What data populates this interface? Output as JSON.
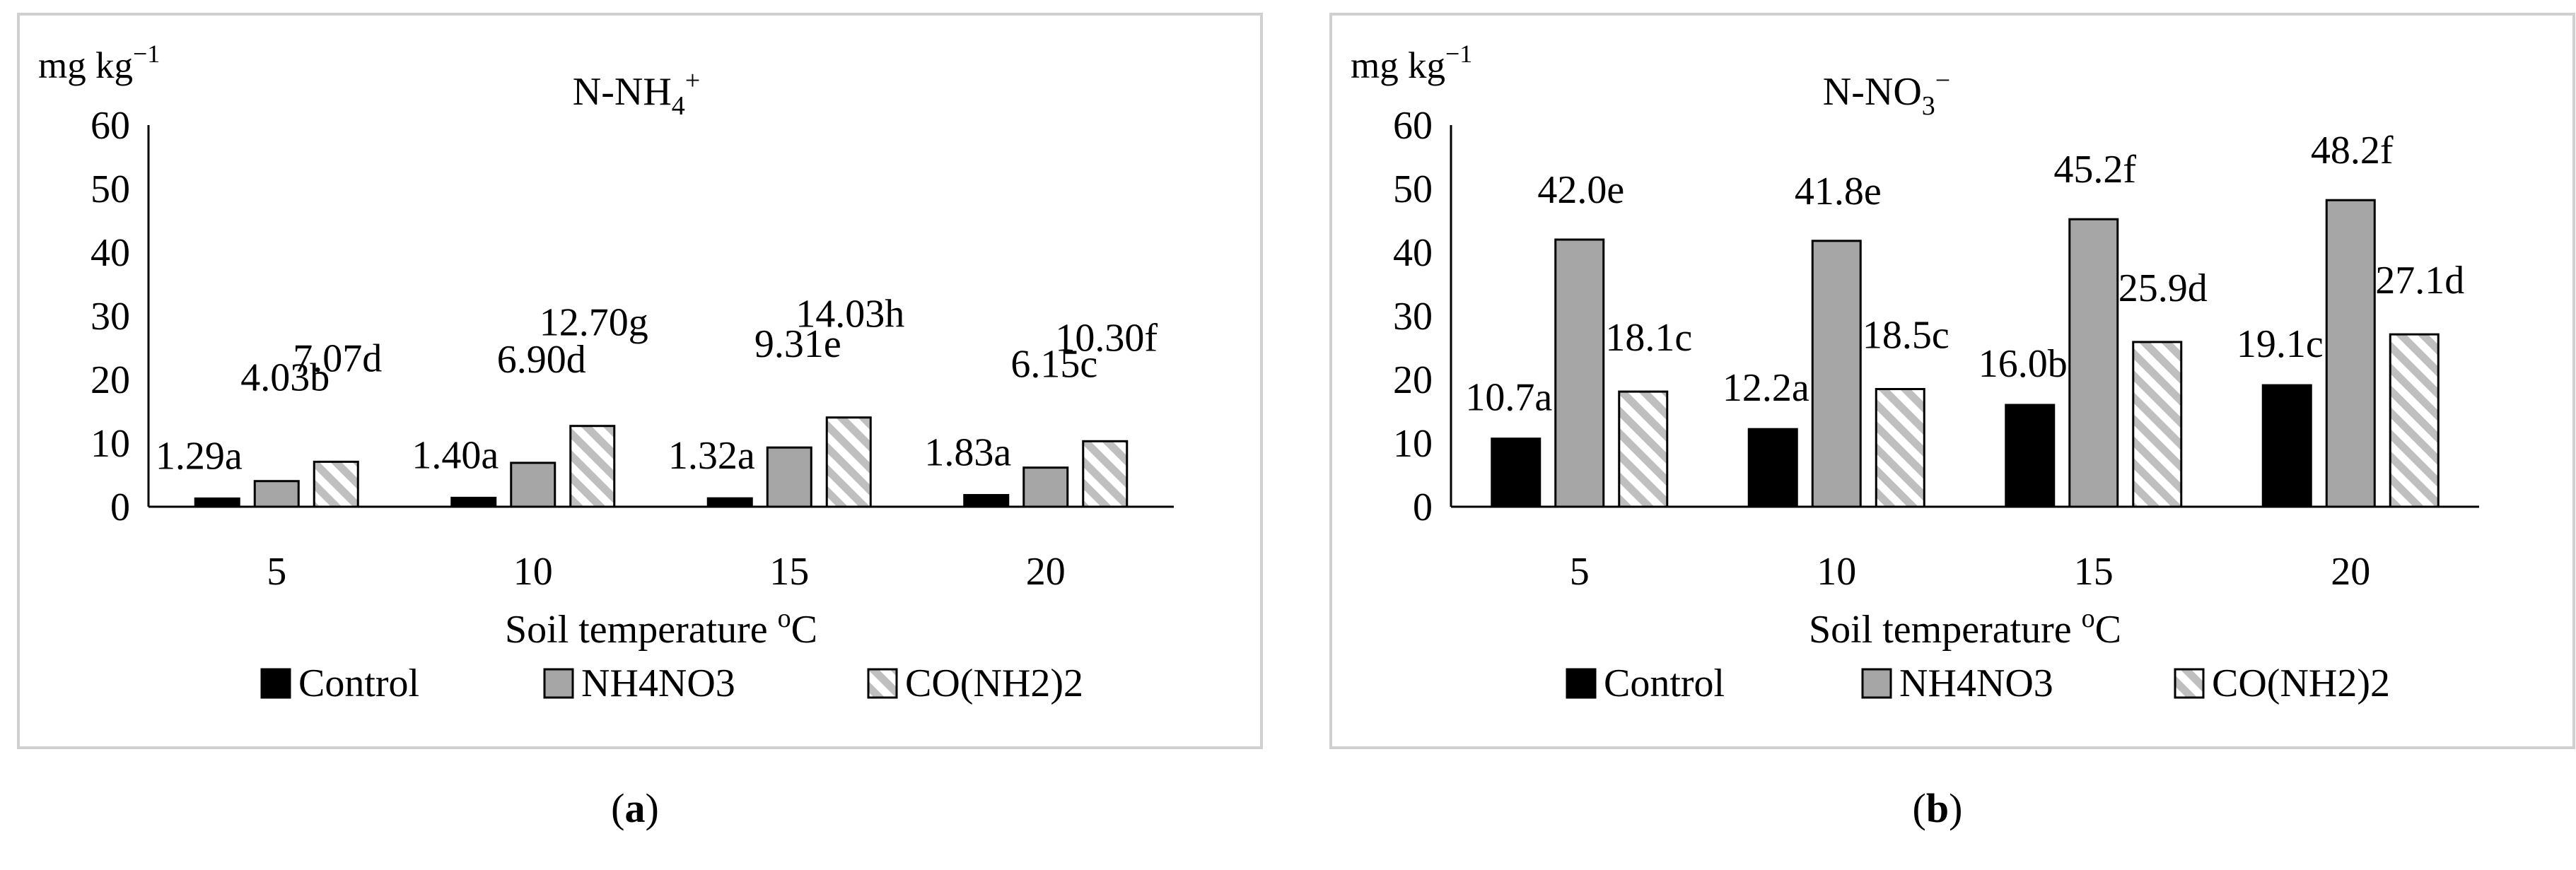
{
  "colors": {
    "control": "#000000",
    "nh4no3": "#a6a6a6",
    "urea_stripe": "#bfbfbf",
    "frame": "#d0d0d0"
  },
  "chart_data": [
    {
      "type": "bar",
      "panel_label": "a",
      "title": "N-NH₄⁺",
      "title_main": "N-NH",
      "title_sub": "4",
      "title_sup": "+",
      "ylabel": "mg kg",
      "ylabel_sup": "−1",
      "xlabel": "Soil temperature",
      "xlabel_sup": "o",
      "xlabel_unit": "C",
      "ylim": [
        0,
        60
      ],
      "yticks": [
        0,
        10,
        20,
        30,
        40,
        50,
        60
      ],
      "categories": [
        "5",
        "10",
        "15",
        "20"
      ],
      "legend_position": "bottom",
      "series": [
        {
          "key": "control",
          "name": "Control",
          "values": [
            1.29,
            1.4,
            1.32,
            1.83
          ],
          "labels": [
            "1.29a",
            "1.40a",
            "1.32a",
            "1.83a"
          ]
        },
        {
          "key": "nh4no3",
          "name": "NH4NO3",
          "values": [
            4.03,
            6.9,
            9.31,
            6.15
          ],
          "labels": [
            "4.03b",
            "6.90d",
            "9.31e",
            "6.15c"
          ]
        },
        {
          "key": "urea",
          "name": "CO(NH2)2",
          "values": [
            7.07,
            12.7,
            14.03,
            10.3
          ],
          "labels": [
            "7.07d",
            "12.70g",
            "14.03h",
            "10.30f"
          ]
        }
      ]
    },
    {
      "type": "bar",
      "panel_label": "b",
      "title": "N-NO₃⁻",
      "title_main": "N-NO",
      "title_sub": "3",
      "title_sup": "−",
      "ylabel": "mg kg",
      "ylabel_sup": "−1",
      "xlabel": "Soil temperature",
      "xlabel_sup": "o",
      "xlabel_unit": "C",
      "ylim": [
        0,
        60
      ],
      "yticks": [
        0,
        10,
        20,
        30,
        40,
        50,
        60
      ],
      "categories": [
        "5",
        "10",
        "15",
        "20"
      ],
      "legend_position": "bottom",
      "series": [
        {
          "key": "control",
          "name": "Control",
          "values": [
            10.7,
            12.2,
            16.0,
            19.1
          ],
          "labels": [
            "10.7a",
            "12.2a",
            "16.0b",
            "19.1c"
          ]
        },
        {
          "key": "nh4no3",
          "name": "NH4NO3",
          "values": [
            42.0,
            41.8,
            45.2,
            48.2
          ],
          "labels": [
            "42.0e",
            "41.8e",
            "45.2f",
            "48.2f"
          ]
        },
        {
          "key": "urea",
          "name": "CO(NH2)2",
          "values": [
            18.1,
            18.5,
            25.9,
            27.1
          ],
          "labels": [
            "18.1c",
            "18.5c",
            "25.9d",
            "27.1d"
          ]
        }
      ]
    }
  ]
}
